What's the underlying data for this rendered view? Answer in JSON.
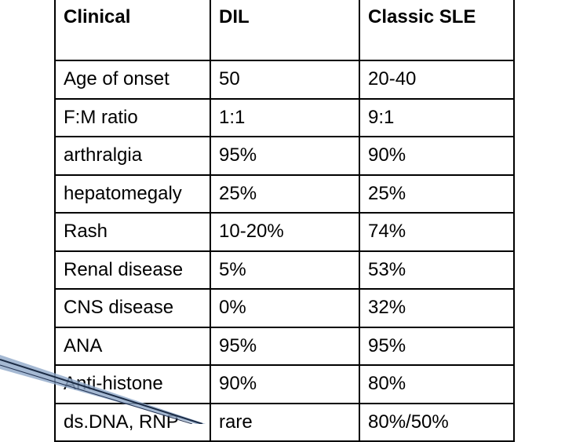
{
  "table": {
    "header": [
      "Clinical",
      "DIL",
      "Classic SLE"
    ],
    "rows": [
      [
        "Age of onset",
        "50",
        "20-40"
      ],
      [
        "F:M ratio",
        "1:1",
        "9:1"
      ],
      [
        "arthralgia",
        "95%",
        "90%"
      ],
      [
        "hepatomegaly",
        "25%",
        "25%"
      ],
      [
        "Rash",
        "10-20%",
        "74%"
      ],
      [
        "Renal disease",
        "5%",
        "53%"
      ],
      [
        "CNS disease",
        "0%",
        "32%"
      ],
      [
        "ANA",
        "95%",
        "95%"
      ],
      [
        "Anti-histone",
        "90%",
        "80%"
      ],
      [
        "ds.DNA, RNP",
        "rare",
        "80%/50%"
      ]
    ]
  }
}
